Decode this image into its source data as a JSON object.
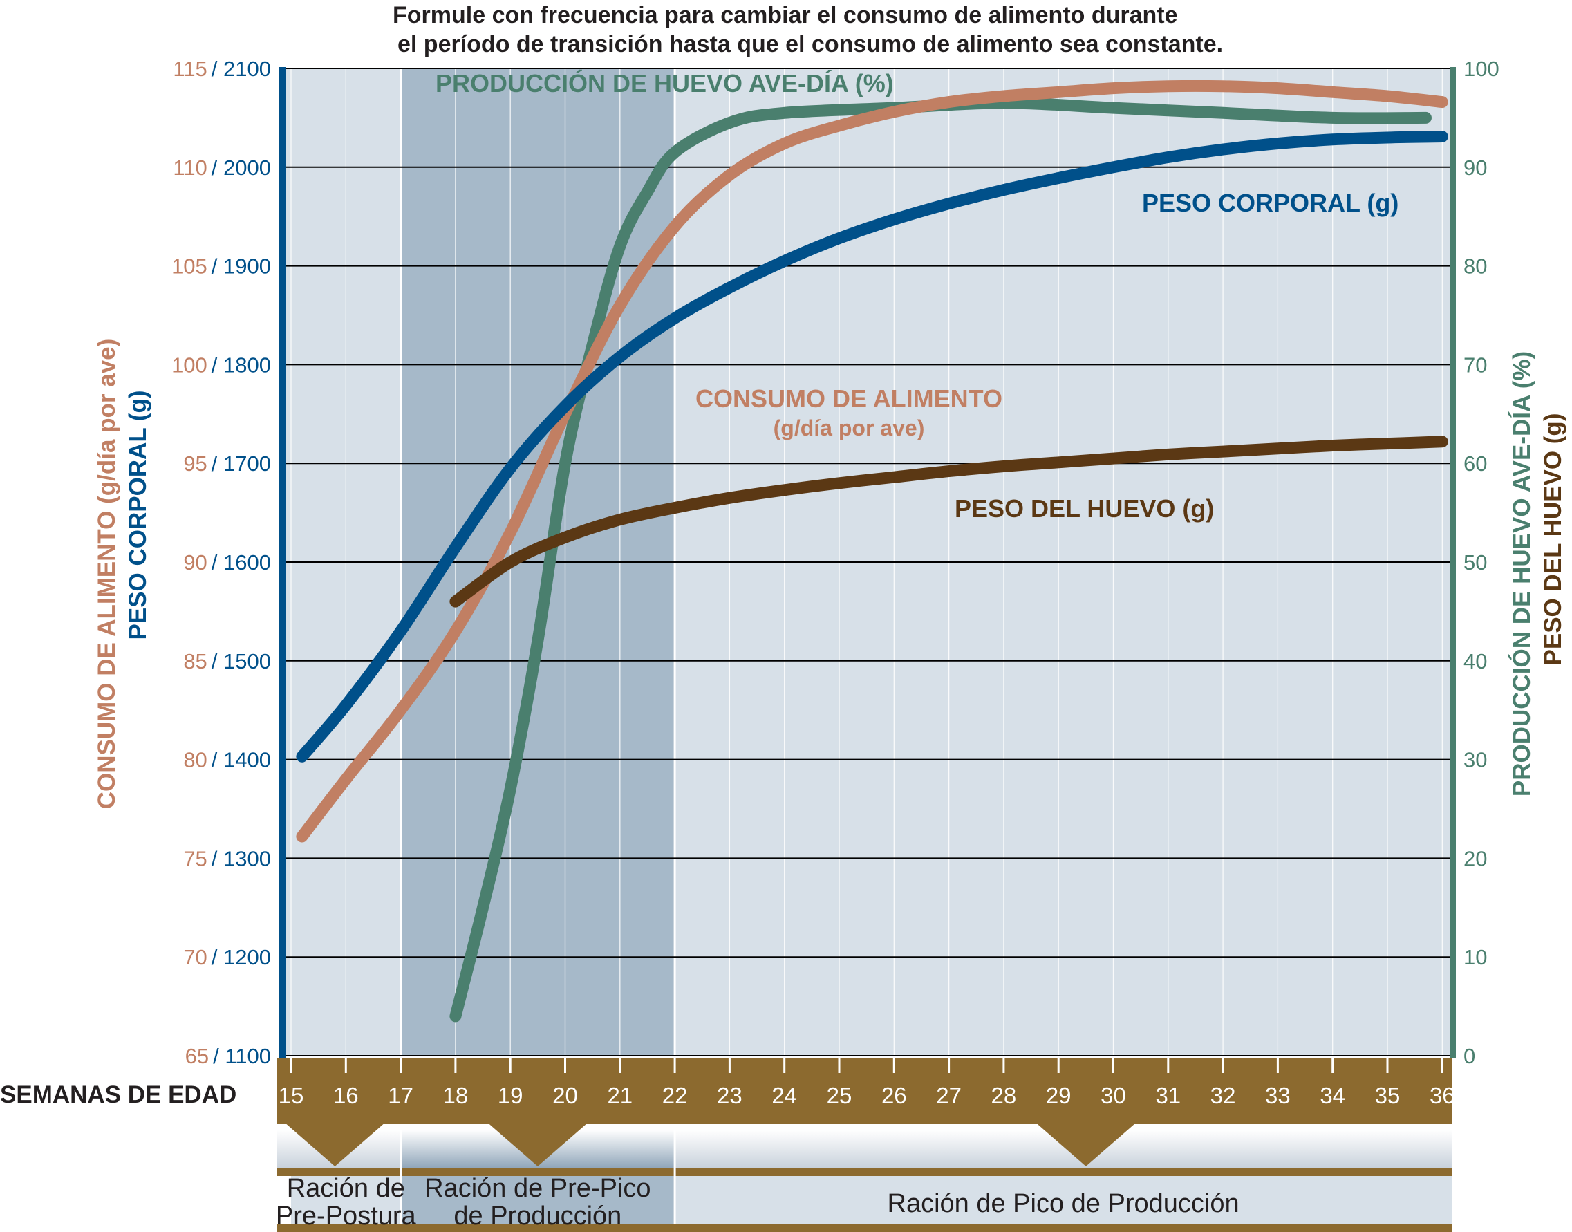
{
  "chart_data": {
    "type": "line",
    "title": "Formule con frecuencia para cambiar el consumo de alimento durante\nel período de transición hasta que el consumo de alimento sea constante.",
    "x": [
      15,
      16,
      17,
      18,
      19,
      20,
      21,
      22,
      23,
      24,
      25,
      26,
      27,
      28,
      29,
      30,
      31,
      32,
      33,
      34,
      35,
      36
    ],
    "xlabel": "SEMANAS DE EDAD",
    "xlim": [
      15,
      36
    ],
    "left_axis": {
      "label_feed": "CONSUMO DE ALIMENTO (g/día por ave)",
      "label_body": "PESO CORPORAL (g)",
      "ticks_feed": [
        "115",
        "110",
        "105",
        "100",
        "95",
        "90",
        "85",
        "80",
        "75",
        "70",
        "65"
      ],
      "ticks_body": [
        "2100",
        "2000",
        "1900",
        "1800",
        "1700",
        "1600",
        "1500",
        "1400",
        "1300",
        "1200",
        "1100"
      ],
      "separator": "/",
      "feed_range": [
        65,
        115
      ],
      "body_range": [
        1100,
        2100
      ]
    },
    "right_axis": {
      "label_prod": "PRODUCCIÓN DE HUEVO AVE-DÍA (%)",
      "label_egg": "PESO DEL HUEVO (g)",
      "ticks": [
        "100",
        "90",
        "80",
        "70",
        "60",
        "50",
        "40",
        "30",
        "20",
        "10",
        "0"
      ],
      "range": [
        0,
        100
      ]
    },
    "series": [
      {
        "name": "PRODUCCIÓN DE HUEVO AVE-DÍA (%)",
        "axis": "right",
        "color": "#4a7f6e",
        "points": [
          [
            18,
            4
          ],
          [
            18.5,
            15
          ],
          [
            19,
            27
          ],
          [
            19.5,
            42
          ],
          [
            20,
            60
          ],
          [
            20.5,
            72
          ],
          [
            21,
            82
          ],
          [
            21.5,
            87.5
          ],
          [
            22,
            91.5
          ],
          [
            23,
            94.5
          ],
          [
            24,
            95.5
          ],
          [
            26,
            96
          ],
          [
            28,
            96.5
          ],
          [
            30,
            96
          ],
          [
            32,
            95.5
          ],
          [
            34,
            95
          ],
          [
            35.7,
            95
          ]
        ]
      },
      {
        "name": "CONSUMO DE ALIMENTO (g/día por ave)",
        "axis": "left_feed",
        "color": "#c17f63",
        "points": [
          [
            15.2,
            76.1
          ],
          [
            16,
            79
          ],
          [
            17,
            82.5
          ],
          [
            18,
            86.5
          ],
          [
            19,
            91.5
          ],
          [
            20,
            97.5
          ],
          [
            21,
            103
          ],
          [
            22,
            107
          ],
          [
            23,
            109.6
          ],
          [
            24,
            111.2
          ],
          [
            25,
            112.1
          ],
          [
            26,
            112.8
          ],
          [
            27,
            113.3
          ],
          [
            28,
            113.6
          ],
          [
            29,
            113.8
          ],
          [
            30,
            114
          ],
          [
            31,
            114.1
          ],
          [
            32,
            114.1
          ],
          [
            33,
            114
          ],
          [
            34,
            113.8
          ],
          [
            35,
            113.6
          ],
          [
            36,
            113.3
          ]
        ]
      },
      {
        "name": "PESO CORPORAL (g)",
        "axis": "left_body",
        "color": "#00508a",
        "points": [
          [
            15.2,
            1403
          ],
          [
            16,
            1455
          ],
          [
            17,
            1530
          ],
          [
            18,
            1615
          ],
          [
            19,
            1695
          ],
          [
            20,
            1758
          ],
          [
            21,
            1808
          ],
          [
            22,
            1847
          ],
          [
            23,
            1878
          ],
          [
            24,
            1905
          ],
          [
            25,
            1928
          ],
          [
            26,
            1947
          ],
          [
            27,
            1963
          ],
          [
            28,
            1977
          ],
          [
            29,
            1989
          ],
          [
            30,
            2000
          ],
          [
            31,
            2010
          ],
          [
            32,
            2018
          ],
          [
            33,
            2024
          ],
          [
            34,
            2028
          ],
          [
            35,
            2030
          ],
          [
            36,
            2031
          ]
        ]
      },
      {
        "name": "PESO DEL HUEVO (g)",
        "axis": "right",
        "color": "#5b3814",
        "points": [
          [
            18,
            46
          ],
          [
            19,
            50
          ],
          [
            20,
            52.5
          ],
          [
            21,
            54.3
          ],
          [
            22,
            55.5
          ],
          [
            23,
            56.5
          ],
          [
            24,
            57.3
          ],
          [
            25,
            58
          ],
          [
            26,
            58.6
          ],
          [
            27,
            59.2
          ],
          [
            28,
            59.7
          ],
          [
            29,
            60.1
          ],
          [
            30,
            60.5
          ],
          [
            31,
            60.9
          ],
          [
            32,
            61.2
          ],
          [
            33,
            61.5
          ],
          [
            34,
            61.8
          ],
          [
            35,
            62
          ],
          [
            36,
            62.2
          ]
        ]
      }
    ],
    "annotations": {
      "prod": "PRODUCCIÓN DE HUEVO AVE-DÍA (%)",
      "body": "PESO CORPORAL (g)",
      "feed_line1": "CONSUMO DE ALIMENTO",
      "feed_line2": "(g/día por ave)",
      "egg": "PESO DEL HUEVO (g)"
    },
    "phases": [
      {
        "name": "pre-postura",
        "from": 15,
        "to": 17,
        "line1": "Ración de",
        "line2": "Pre-Postura",
        "arrow_at": 15.8
      },
      {
        "name": "pre-pico",
        "from": 17,
        "to": 22,
        "line1": "Ración de Pre-Pico",
        "line2": "de Producción",
        "arrow_at": 19.5,
        "highlighted": true
      },
      {
        "name": "pico",
        "from": 22,
        "to": 36.3,
        "line1": "Ración de Pico de Producción",
        "arrow_at": 29.5
      }
    ],
    "grid": true,
    "colors": {
      "feed": "#c17f63",
      "body": "#00508a",
      "prod": "#4a7f6e",
      "egg": "#5b3814",
      "plot_bg": "#d7e0e8",
      "highlight_bg": "#a6b9c9",
      "band": "#8c6a2f",
      "text": "#231f20"
    }
  }
}
